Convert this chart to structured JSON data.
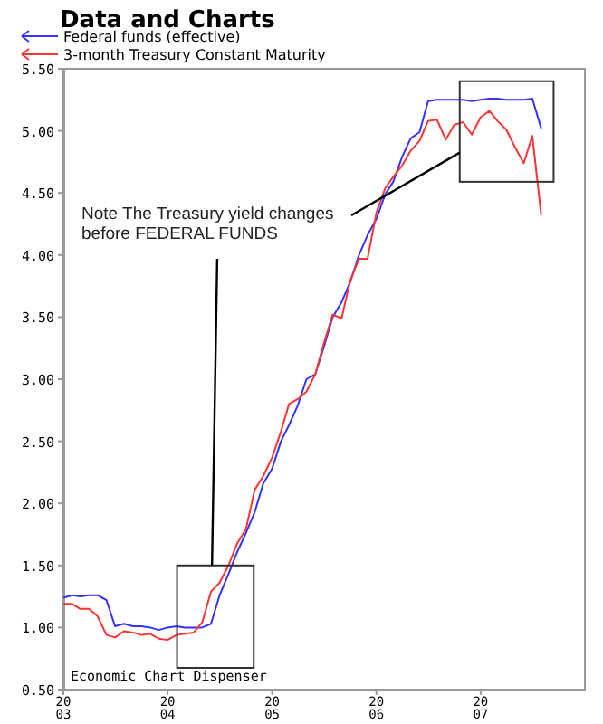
{
  "chart_data": {
    "type": "line",
    "title": "Data and Charts",
    "annotations": [
      "Note The Treasury yield changes before FEDERAL FUNDS",
      "Economic Chart Dispenser"
    ],
    "x": [
      "2003-01",
      "2003-02",
      "2003-03",
      "2003-04",
      "2003-05",
      "2003-06",
      "2003-07",
      "2003-08",
      "2003-09",
      "2003-10",
      "2003-11",
      "2003-12",
      "2004-01",
      "2004-02",
      "2004-03",
      "2004-04",
      "2004-05",
      "2004-06",
      "2004-07",
      "2004-08",
      "2004-09",
      "2004-10",
      "2004-11",
      "2004-12",
      "2005-01",
      "2005-02",
      "2005-03",
      "2005-04",
      "2005-05",
      "2005-06",
      "2005-07",
      "2005-08",
      "2005-09",
      "2005-10",
      "2005-11",
      "2005-12",
      "2006-01",
      "2006-02",
      "2006-03",
      "2006-04",
      "2006-05",
      "2006-06",
      "2006-07",
      "2006-08",
      "2006-09",
      "2006-10",
      "2006-11",
      "2006-12",
      "2007-01",
      "2007-02",
      "2007-03",
      "2007-04",
      "2007-05",
      "2007-06",
      "2007-07",
      "2007-08"
    ],
    "series": [
      {
        "name": "Federal funds (effective)",
        "color": "#3333ff",
        "values": [
          1.24,
          1.26,
          1.25,
          1.26,
          1.26,
          1.22,
          1.01,
          1.03,
          1.01,
          1.01,
          1.0,
          0.98,
          1.0,
          1.01,
          1.0,
          1.0,
          1.0,
          1.03,
          1.26,
          1.43,
          1.61,
          1.76,
          1.93,
          2.16,
          2.28,
          2.5,
          2.63,
          2.79,
          3.0,
          3.04,
          3.26,
          3.5,
          3.62,
          3.78,
          4.0,
          4.16,
          4.29,
          4.49,
          4.59,
          4.79,
          4.94,
          4.99,
          5.24,
          5.25,
          5.25,
          5.25,
          5.25,
          5.24,
          5.25,
          5.26,
          5.26,
          5.25,
          5.25,
          5.25,
          5.26,
          5.02
        ]
      },
      {
        "name": "3-month Treasury Constant Maturity",
        "color": "#ff3333",
        "values": [
          1.19,
          1.19,
          1.15,
          1.15,
          1.09,
          0.94,
          0.92,
          0.97,
          0.96,
          0.94,
          0.95,
          0.91,
          0.9,
          0.94,
          0.95,
          0.96,
          1.04,
          1.29,
          1.36,
          1.5,
          1.68,
          1.79,
          2.11,
          2.22,
          2.37,
          2.58,
          2.8,
          2.84,
          2.9,
          3.04,
          3.29,
          3.52,
          3.49,
          3.79,
          3.97,
          3.97,
          4.34,
          4.54,
          4.63,
          4.72,
          4.84,
          4.92,
          5.08,
          5.09,
          4.93,
          5.05,
          5.07,
          4.97,
          5.11,
          5.16,
          5.08,
          5.01,
          4.87,
          4.74,
          4.96,
          4.32
        ]
      }
    ],
    "xlim": [
      "2003-01-01",
      "2008-01-01"
    ],
    "xticks": [
      {
        "value": "2003-01-01",
        "label": "2003"
      },
      {
        "value": "2004-01-01",
        "label": "2004"
      },
      {
        "value": "2005-01-01",
        "label": "2005"
      },
      {
        "value": "2006-01-01",
        "label": "2006"
      },
      {
        "value": "2007-01-01",
        "label": "2007"
      }
    ],
    "ylim": [
      0.5,
      5.5
    ],
    "yticks": [
      {
        "value": 0.5,
        "label": "0.50"
      },
      {
        "value": 1.0,
        "label": "1.00"
      },
      {
        "value": 1.5,
        "label": "1.50"
      },
      {
        "value": 2.0,
        "label": "2.00"
      },
      {
        "value": 2.5,
        "label": "2.50"
      },
      {
        "value": 3.0,
        "label": "3.00"
      },
      {
        "value": 3.5,
        "label": "3.50"
      },
      {
        "value": 4.0,
        "label": "4.00"
      },
      {
        "value": 4.5,
        "label": "4.50"
      },
      {
        "value": 5.0,
        "label": "5.00"
      },
      {
        "value": 5.5,
        "label": "5.50"
      }
    ],
    "legend": "top left",
    "grid": false,
    "marker": "none",
    "line_style": "solid"
  }
}
